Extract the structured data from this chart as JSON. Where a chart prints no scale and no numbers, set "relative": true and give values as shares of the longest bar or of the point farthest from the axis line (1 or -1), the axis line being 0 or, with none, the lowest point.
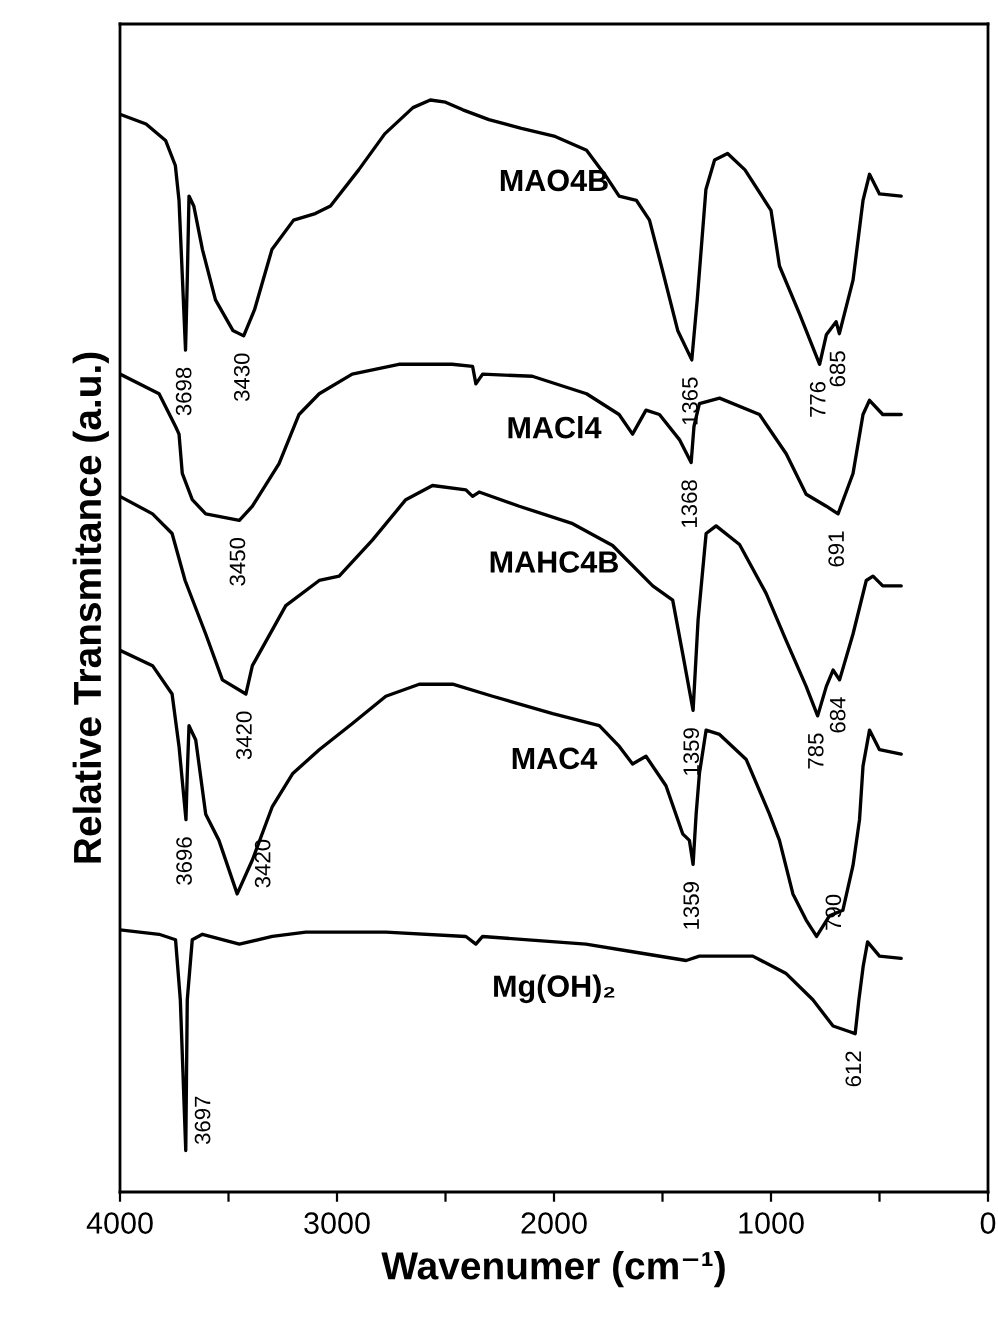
{
  "chart_data": {
    "type": "line",
    "relative": true,
    "xlabel": "Wavenumer (cm⁻¹)",
    "ylabel": "Relative Transmitance (a.u.)",
    "xlim": [
      4000,
      0
    ],
    "xticks": [
      4000,
      {
        "value": 3500,
        "label": null
      },
      3000,
      {
        "value": 2500,
        "label": null
      },
      2000,
      {
        "value": 1500,
        "label": null
      },
      1000,
      {
        "value": 500,
        "label": null
      },
      0
    ],
    "tick_labels": "x",
    "grid": false,
    "legend": false,
    "series": [
      {
        "name": "MAO4B",
        "color": "#000000",
        "x": [
          4000,
          3880,
          3790,
          3745,
          3728,
          3712,
          3698,
          3690,
          3682,
          3660,
          3620,
          3560,
          3480,
          3430,
          3380,
          3300,
          3200,
          3100,
          3030,
          2900,
          2780,
          2650,
          2570,
          2500,
          2420,
          2300,
          2150,
          2000,
          1850,
          1760,
          1700,
          1620,
          1560,
          1500,
          1430,
          1365,
          1340,
          1300,
          1260,
          1200,
          1120,
          1000,
          961,
          868,
          776,
          745,
          700,
          685,
          622,
          576,
          546,
          500,
          400
        ],
        "values": [
          0.987,
          0.978,
          0.963,
          0.94,
          0.908,
          0.835,
          0.771,
          0.835,
          0.912,
          0.903,
          0.863,
          0.817,
          0.789,
          0.784,
          0.808,
          0.863,
          0.89,
          0.896,
          0.903,
          0.936,
          0.969,
          0.993,
          1.0,
          0.998,
          0.991,
          0.982,
          0.974,
          0.967,
          0.954,
          0.93,
          0.912,
          0.908,
          0.89,
          0.844,
          0.789,
          0.762,
          0.817,
          0.918,
          0.945,
          0.951,
          0.936,
          0.899,
          0.848,
          0.804,
          0.758,
          0.785,
          0.797,
          0.786,
          0.835,
          0.908,
          0.932,
          0.914,
          0.912
        ]
      },
      {
        "name": "MACl4",
        "color": "#000000",
        "x": [
          4000,
          3820,
          3744,
          3728,
          3713,
          3667,
          3605,
          3450,
          3390,
          3267,
          3175,
          3082,
          2930,
          2715,
          2470,
          2375,
          2360,
          2329,
          2100,
          1850,
          1700,
          1638,
          1576,
          1514,
          1422,
          1368,
          1355,
          1330,
          1237,
          1053,
          930,
          838,
          745,
          691,
          622,
          576,
          546,
          485,
          400
        ],
        "values": [
          0.749,
          0.731,
          0.701,
          0.694,
          0.658,
          0.634,
          0.621,
          0.615,
          0.628,
          0.667,
          0.712,
          0.731,
          0.749,
          0.758,
          0.758,
          0.756,
          0.74,
          0.749,
          0.747,
          0.731,
          0.712,
          0.694,
          0.716,
          0.712,
          0.689,
          0.668,
          0.701,
          0.722,
          0.727,
          0.712,
          0.676,
          0.639,
          0.628,
          0.621,
          0.658,
          0.712,
          0.725,
          0.712,
          0.712
        ]
      },
      {
        "name": "MAHC4B",
        "color": "#000000",
        "x": [
          4000,
          3850,
          3760,
          3700,
          3605,
          3528,
          3420,
          3390,
          3236,
          3082,
          2990,
          2837,
          2683,
          2560,
          2406,
          2375,
          2345,
          2160,
          1914,
          1730,
          1545,
          1453,
          1407,
          1359,
          1336,
          1299,
          1253,
          1145,
          1022,
          930,
          838,
          785,
          745,
          714,
          684,
          622,
          561,
          530,
          485,
          400
        ],
        "values": [
          0.637,
          0.621,
          0.603,
          0.56,
          0.511,
          0.469,
          0.456,
          0.482,
          0.537,
          0.56,
          0.564,
          0.597,
          0.634,
          0.647,
          0.643,
          0.637,
          0.641,
          0.628,
          0.612,
          0.592,
          0.555,
          0.542,
          0.493,
          0.441,
          0.524,
          0.603,
          0.61,
          0.593,
          0.548,
          0.505,
          0.463,
          0.436,
          0.463,
          0.478,
          0.469,
          0.511,
          0.56,
          0.564,
          0.555,
          0.555
        ]
      },
      {
        "name": "MAC4",
        "color": "#000000",
        "x": [
          4000,
          3850,
          3760,
          3728,
          3696,
          3690,
          3682,
          3651,
          3605,
          3544,
          3460,
          3390,
          3298,
          3205,
          3082,
          2929,
          2775,
          2621,
          2467,
          2283,
          2006,
          1791,
          1699,
          1638,
          1576,
          1484,
          1407,
          1376,
          1359,
          1345,
          1330,
          1299,
          1237,
          1114,
          1007,
          961,
          899,
          838,
          790,
          730,
          669,
          622,
          592,
          576,
          546,
          500,
          400
        ],
        "values": [
          0.496,
          0.482,
          0.456,
          0.408,
          0.341,
          0.383,
          0.427,
          0.414,
          0.346,
          0.322,
          0.273,
          0.304,
          0.353,
          0.383,
          0.405,
          0.429,
          0.454,
          0.465,
          0.465,
          0.454,
          0.438,
          0.427,
          0.408,
          0.392,
          0.399,
          0.372,
          0.328,
          0.322,
          0.3,
          0.346,
          0.383,
          0.423,
          0.419,
          0.396,
          0.346,
          0.322,
          0.273,
          0.249,
          0.234,
          0.253,
          0.258,
          0.299,
          0.341,
          0.39,
          0.423,
          0.405,
          0.401
        ]
      },
      {
        "name": "Mg(OH)₂",
        "color": "#000000",
        "x": [
          4000,
          3820,
          3744,
          3722,
          3697,
          3690,
          3667,
          3620,
          3450,
          3298,
          3144,
          2775,
          2406,
          2360,
          2329,
          1853,
          1638,
          1391,
          1330,
          1084,
          930,
          807,
          714,
          640,
          612,
          595,
          575,
          555,
          500,
          400
        ],
        "values": [
          0.24,
          0.236,
          0.231,
          0.176,
          0.038,
          0.176,
          0.231,
          0.236,
          0.227,
          0.234,
          0.238,
          0.238,
          0.234,
          0.227,
          0.234,
          0.227,
          0.22,
          0.212,
          0.216,
          0.216,
          0.2,
          0.176,
          0.152,
          0.147,
          0.145,
          0.176,
          0.207,
          0.229,
          0.216,
          0.214
        ]
      }
    ],
    "annotations": [
      {
        "text": "3698",
        "x": 3698,
        "y": 0.771
      },
      {
        "text": "3430",
        "x": 3430,
        "y": 0.784
      },
      {
        "text": "1365",
        "x": 1365,
        "y": 0.762
      },
      {
        "text": "776",
        "x": 776,
        "y": 0.758
      },
      {
        "text": "685",
        "x": 685,
        "y": 0.786
      },
      {
        "text": "3450",
        "x": 3450,
        "y": 0.615
      },
      {
        "text": "1368",
        "x": 1368,
        "y": 0.668
      },
      {
        "text": "691",
        "x": 691,
        "y": 0.621
      },
      {
        "text": "3420",
        "x": 3420,
        "y": 0.456
      },
      {
        "text": "1359",
        "x": 1359,
        "y": 0.441
      },
      {
        "text": "785",
        "x": 785,
        "y": 0.436
      },
      {
        "text": "684",
        "x": 684,
        "y": 0.469
      },
      {
        "text": "3696",
        "x": 3696,
        "y": 0.341
      },
      {
        "text": "3420",
        "x": 3420,
        "y": 0.273
      },
      {
        "text": "1359",
        "x": 1359,
        "y": 0.3
      },
      {
        "text": "790",
        "x": 790,
        "y": 0.234
      },
      {
        "text": "3697",
        "x": 3697,
        "y": 0.038
      },
      {
        "text": "612",
        "x": 612,
        "y": 0.145
      }
    ]
  }
}
